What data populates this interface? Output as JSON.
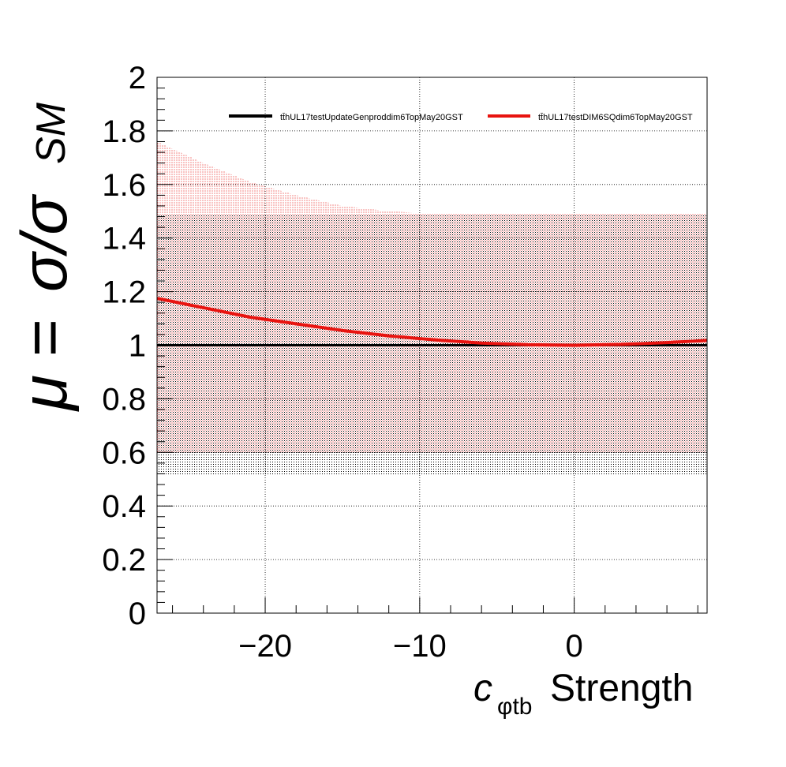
{
  "chart_data": {
    "type": "line",
    "xlabel_symbol": "c",
    "xlabel_subscript": "φtb",
    "xlabel_text": "Strength",
    "ylabel_mu": "μ",
    "ylabel_equals": "=",
    "ylabel_sigma": "σ/σ",
    "ylabel_subscript": "SM",
    "xlim": [
      -27,
      8.6
    ],
    "ylim": [
      0,
      2
    ],
    "xticks": [
      -20,
      -10,
      0
    ],
    "xtick_labels": [
      "−20",
      "−10",
      "0"
    ],
    "yticks": [
      0,
      0.2,
      0.4,
      0.6,
      0.8,
      1,
      1.2,
      1.4,
      1.6,
      1.8,
      2
    ],
    "ytick_labels": [
      "0",
      "0.2",
      "0.4",
      "0.6",
      "0.8",
      "1",
      "1.2",
      "1.4",
      "1.6",
      "1.8",
      "2"
    ],
    "grid": true,
    "legend_position": "top",
    "series": [
      {
        "name": "tt̄hUL17testUpdateGenproddim6TopMay20GST",
        "color": "#000000",
        "x": [
          -27,
          8.6
        ],
        "y": [
          1.0,
          1.0
        ],
        "band_lower": [
          0.515,
          0.515
        ],
        "band_upper": [
          1.49,
          1.49
        ]
      },
      {
        "name": "tt̄hUL17testDIM6SQdim6TopMay20GST",
        "color": "#e8130f",
        "x": [
          -27,
          -24,
          -21,
          -18,
          -15,
          -12,
          -9,
          -6,
          -3,
          0,
          3,
          6,
          8.6
        ],
        "y": [
          1.175,
          1.14,
          1.105,
          1.08,
          1.055,
          1.035,
          1.02,
          1.008,
          1.002,
          1.0,
          1.003,
          1.01,
          1.018
        ],
        "band_lower": [
          0.6,
          0.6,
          0.6,
          0.6,
          0.6,
          0.6,
          0.6,
          0.6,
          0.6,
          0.6,
          0.6,
          0.6,
          0.6
        ],
        "band_upper": [
          1.76,
          1.68,
          1.61,
          1.56,
          1.52,
          1.5,
          1.49,
          1.49,
          1.49,
          1.49,
          1.49,
          1.49,
          1.49
        ]
      }
    ]
  }
}
